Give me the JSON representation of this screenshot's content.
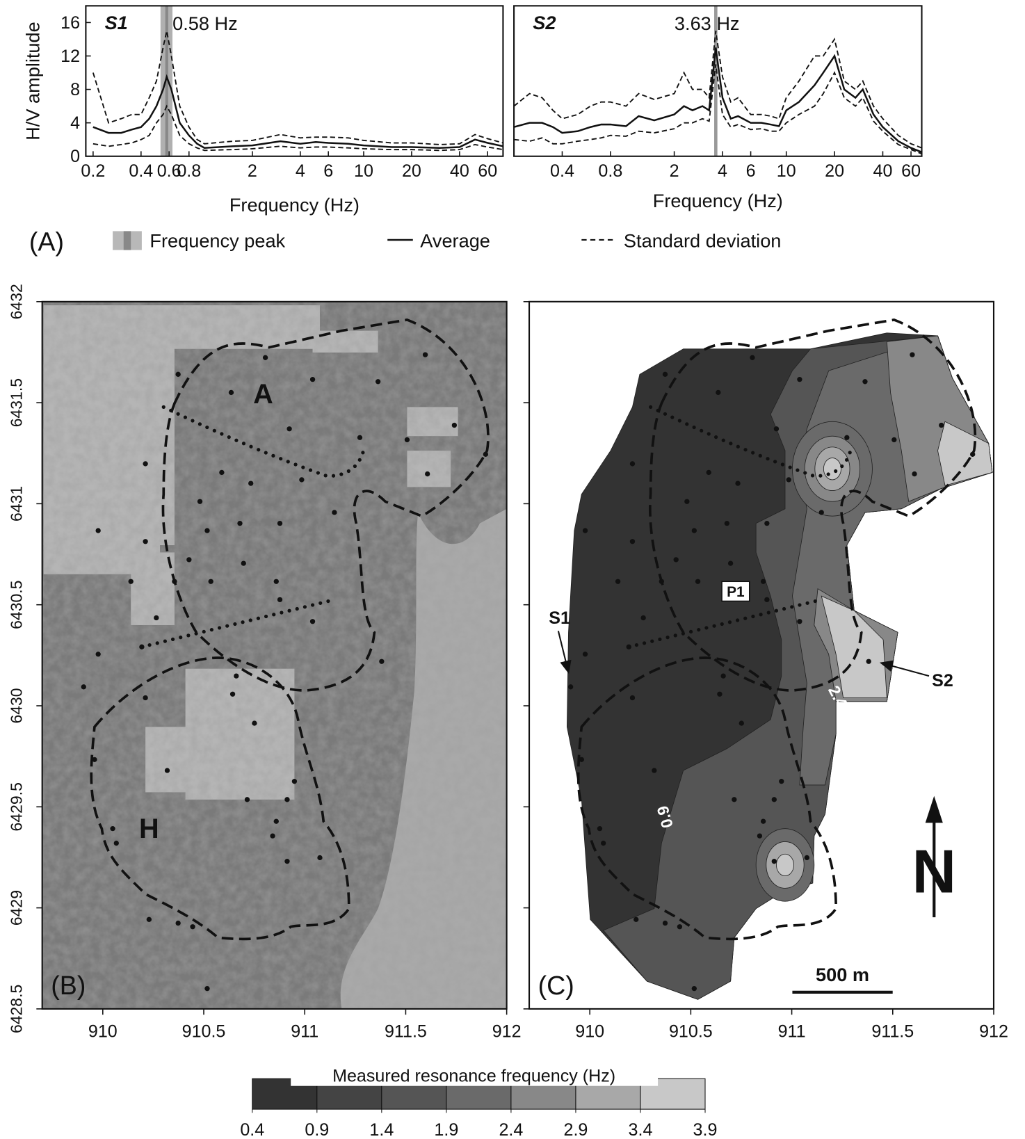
{
  "chart_data": [
    {
      "type": "line",
      "title": "S1",
      "ylabel": "H/V amplitude",
      "xlabel": "Frequency (Hz)",
      "log_x": true,
      "xlim": [
        0.18,
        75
      ],
      "xticks": [
        0.2,
        0.4,
        0.6,
        0.8,
        2,
        4,
        6,
        10,
        20,
        40,
        60
      ],
      "ylim": [
        0,
        18
      ],
      "yticks": [
        0,
        4,
        8,
        12,
        16
      ],
      "peak": 0.58,
      "peak_band": [
        0.53,
        0.63
      ],
      "peak_label": "0.58 Hz",
      "band_color": "#b0b0b0",
      "peak_color": "#888888",
      "x": [
        0.2,
        0.25,
        0.3,
        0.35,
        0.4,
        0.45,
        0.5,
        0.55,
        0.58,
        0.62,
        0.7,
        0.8,
        0.9,
        1,
        1.5,
        2,
        3,
        4,
        5,
        6,
        8,
        10,
        15,
        20,
        30,
        40,
        50,
        60,
        75
      ],
      "series": [
        {
          "style": "solid",
          "color": "#111111",
          "values": [
            3.5,
            2.8,
            2.8,
            3.2,
            3.5,
            4.5,
            6,
            8,
            9.5,
            8,
            4,
            2.5,
            1.5,
            1,
            1.2,
            1.3,
            1.8,
            1.5,
            1.7,
            1.6,
            1.5,
            1.3,
            1.1,
            1.1,
            1.0,
            1.1,
            2.0,
            1.6,
            1.2
          ]
        },
        {
          "style": "dashed",
          "color": "#111111",
          "values": [
            10,
            4,
            4.5,
            5,
            5,
            7,
            9,
            13,
            15,
            12,
            6,
            3.5,
            2,
            1.5,
            1.8,
            1.9,
            2.6,
            2.2,
            2.3,
            2.3,
            2.2,
            1.9,
            1.6,
            1.6,
            1.4,
            1.5,
            2.6,
            2.1,
            1.6
          ]
        },
        {
          "style": "dashed",
          "color": "#111111",
          "values": [
            1.5,
            1.2,
            1.4,
            1.6,
            2,
            2.5,
            4,
            5,
            6,
            5,
            2.5,
            1.5,
            1,
            0.7,
            0.8,
            0.9,
            1.2,
            1,
            1.1,
            1.1,
            1,
            0.9,
            0.8,
            0.8,
            0.7,
            0.8,
            1.4,
            1.1,
            0.8
          ]
        }
      ]
    },
    {
      "type": "line",
      "title": "S2",
      "xlabel": "Frequency (Hz)",
      "log_x": true,
      "xlim": [
        0.2,
        70
      ],
      "xticks": [
        0.4,
        0.8,
        2,
        4,
        6,
        10,
        20,
        40,
        60
      ],
      "ylim": [
        0,
        18
      ],
      "peak": 3.63,
      "peak_band": [
        3.55,
        3.72
      ],
      "peak_label": "3.63 Hz",
      "band_color": "#b0b0b0",
      "peak_color": "#999999",
      "x": [
        0.2,
        0.25,
        0.3,
        0.35,
        0.4,
        0.5,
        0.6,
        0.7,
        0.8,
        1,
        1.2,
        1.5,
        2,
        2.3,
        2.6,
        3,
        3.3,
        3.63,
        4,
        4.5,
        5,
        6,
        7,
        8,
        9,
        10,
        12,
        15,
        17,
        20,
        23,
        27,
        30,
        35,
        40,
        50,
        60,
        70
      ],
      "series": [
        {
          "style": "solid",
          "color": "#111111",
          "values": [
            3.5,
            4,
            4,
            3.5,
            2.8,
            3,
            3.5,
            3.8,
            3.8,
            3.6,
            4.8,
            4.3,
            5,
            6,
            5.5,
            6,
            5.5,
            13,
            7,
            4.5,
            4.8,
            4,
            4,
            3.8,
            3.6,
            5.5,
            6.5,
            8.5,
            10,
            12,
            8,
            7,
            8,
            5,
            3.5,
            1.8,
            1,
            0.5
          ]
        },
        {
          "style": "dashed",
          "color": "#111111",
          "values": [
            6,
            7.5,
            7,
            5.5,
            4.5,
            5,
            6,
            6.5,
            6.5,
            6,
            7.5,
            6.8,
            7.5,
            10,
            8,
            8,
            7,
            15,
            9.5,
            6.5,
            7,
            5,
            5,
            4.8,
            4.5,
            7,
            9,
            12,
            12,
            14,
            9,
            8,
            9,
            6,
            4.5,
            2.5,
            1.5,
            1
          ]
        },
        {
          "style": "dashed",
          "color": "#111111",
          "values": [
            2,
            1.8,
            2.2,
            1.5,
            1.5,
            1.8,
            2,
            2.2,
            2.5,
            2.4,
            3,
            2.8,
            3.3,
            4,
            4,
            4.5,
            4.2,
            11,
            5,
            3.5,
            3.8,
            3.2,
            3.3,
            3,
            3,
            4,
            5,
            6,
            7.5,
            10,
            7,
            6,
            7,
            4.2,
            3,
            1.4,
            0.8,
            0.3
          ]
        }
      ]
    }
  ],
  "legend": {
    "panel_label": "(A)",
    "entries": [
      "Frequency peak",
      "Average",
      "Standard deviation"
    ]
  },
  "panel_b": {
    "panel_label": "(B)",
    "zone_labels": [
      "A",
      "H"
    ],
    "xlim": [
      909.7,
      912
    ],
    "ylim": [
      6428.5,
      6432
    ],
    "xticks": [
      910,
      910.5,
      911,
      911.5,
      912
    ],
    "yticks": [
      6428.5,
      6429,
      6429.5,
      6430,
      6430.5,
      6431,
      6431.5,
      6432
    ]
  },
  "panel_c": {
    "panel_label": "(C)",
    "xlim": [
      909.7,
      912
    ],
    "ylim": [
      6428.5,
      6432
    ],
    "xticks": [
      910,
      910.5,
      911,
      911.5,
      912
    ],
    "yticks": [
      6428.5,
      6429,
      6429.5,
      6430,
      6430.5,
      6431,
      6431.5,
      6432
    ],
    "profile_label": "P1",
    "site_labels": [
      "S1",
      "S2"
    ],
    "contour_labels": [
      "2.4",
      "0.9"
    ],
    "scale_label": "500 m",
    "north_label": "N"
  },
  "colorbar": {
    "title": "Measured resonance frequency (Hz)",
    "ticks": [
      0.4,
      0.9,
      1.4,
      1.9,
      2.4,
      2.9,
      3.4,
      3.9
    ],
    "colors": [
      "#333333",
      "#444444",
      "#555555",
      "#6a6a6a",
      "#888888",
      "#a8a8a8",
      "#c8c8c8"
    ]
  }
}
